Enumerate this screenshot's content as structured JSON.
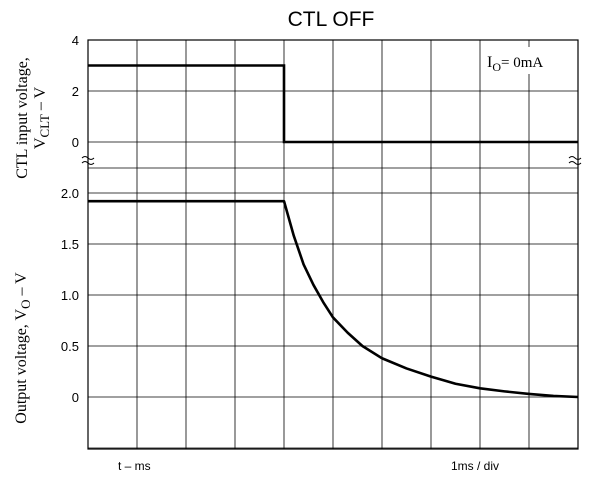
{
  "chart_data": {
    "type": "line",
    "title": "CTL OFF",
    "annotation": {
      "main": "I",
      "sub": "O",
      "rest": "= 0mA"
    },
    "x_label_left": "t – ms",
    "x_label_right": "1ms / div",
    "x_divisions": 10,
    "top_panel": {
      "ylabel_line1": "CTL input voltage,",
      "ylabel_line2_main": "V",
      "ylabel_line2_sub": "CLT",
      "ylabel_line2_rest": " – V",
      "ylim": [
        0,
        4
      ],
      "yticks": [
        "4",
        "2",
        "0"
      ],
      "ytick_values": [
        4,
        2,
        0
      ],
      "series": [
        {
          "x": [
            0,
            4,
            4,
            10
          ],
          "y": [
            3,
            3,
            0,
            0
          ]
        }
      ]
    },
    "bottom_panel": {
      "ylabel_main": "Output voltage, V",
      "ylabel_sub": "O",
      "ylabel_rest": " – V",
      "ylim": [
        -0.5,
        2.0
      ],
      "yticks": [
        "2.0",
        "1.5",
        "1.0",
        "0.5",
        "0"
      ],
      "ytick_values": [
        2.0,
        1.5,
        1.0,
        0.5,
        0
      ],
      "series": [
        {
          "x": [
            0,
            4.0,
            4.2,
            4.4,
            4.6,
            4.8,
            5.0,
            5.3,
            5.6,
            6.0,
            6.5,
            7.0,
            7.5,
            8.0,
            8.5,
            9.0,
            9.5,
            10.0
          ],
          "y": [
            1.92,
            1.92,
            1.58,
            1.3,
            1.1,
            0.93,
            0.78,
            0.63,
            0.5,
            0.38,
            0.28,
            0.2,
            0.13,
            0.085,
            0.055,
            0.03,
            0.01,
            0.0
          ]
        }
      ]
    }
  }
}
